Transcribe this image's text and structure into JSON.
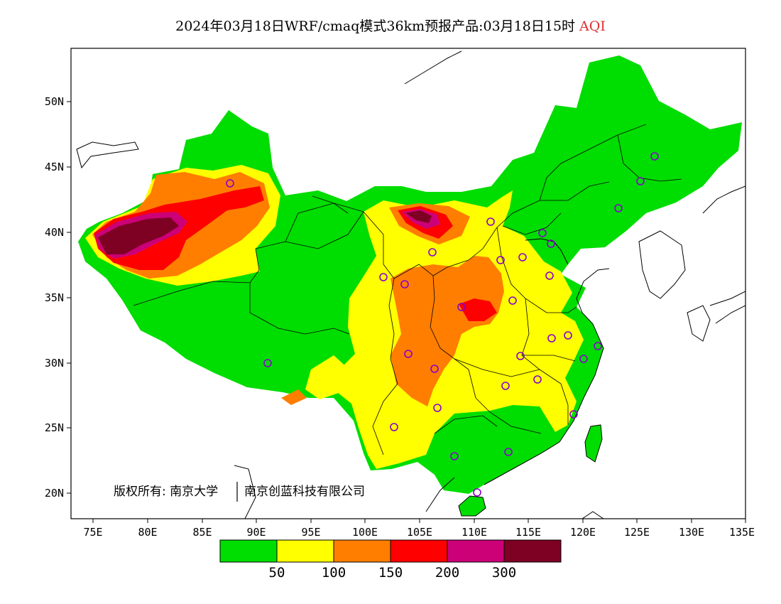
{
  "title": {
    "text": "2024年03月18日WRF/cmaq模式36km预报产品:03月18日15时",
    "pollutant": "AQI",
    "pollutant_color": "#e03030"
  },
  "axes": {
    "lat_labels": [
      "20N",
      "25N",
      "30N",
      "35N",
      "40N",
      "45N",
      "50N"
    ],
    "lon_labels": [
      "75E",
      "80E",
      "85E",
      "90E",
      "95E",
      "100E",
      "105E",
      "110E",
      "115E",
      "120E",
      "125E",
      "130E",
      "135E"
    ]
  },
  "copyright": {
    "left": "版权所有: 南京大学",
    "right": "南京创蓝科技有限公司"
  },
  "legend": {
    "colors": [
      "#00dd00",
      "#ffff00",
      "#ff7e00",
      "#ff0000",
      "#cc0077",
      "#7e0023"
    ],
    "labels": [
      "50",
      "100",
      "150",
      "200",
      "300"
    ]
  },
  "map_colors": {
    "good": "#00dd00",
    "moderate": "#ffff00",
    "usg": "#ff7e00",
    "unhealthy": "#ff0000",
    "very_unhealthy": "#cc0077",
    "hazardous": "#7e0023",
    "station_marker": "#8800cc"
  }
}
